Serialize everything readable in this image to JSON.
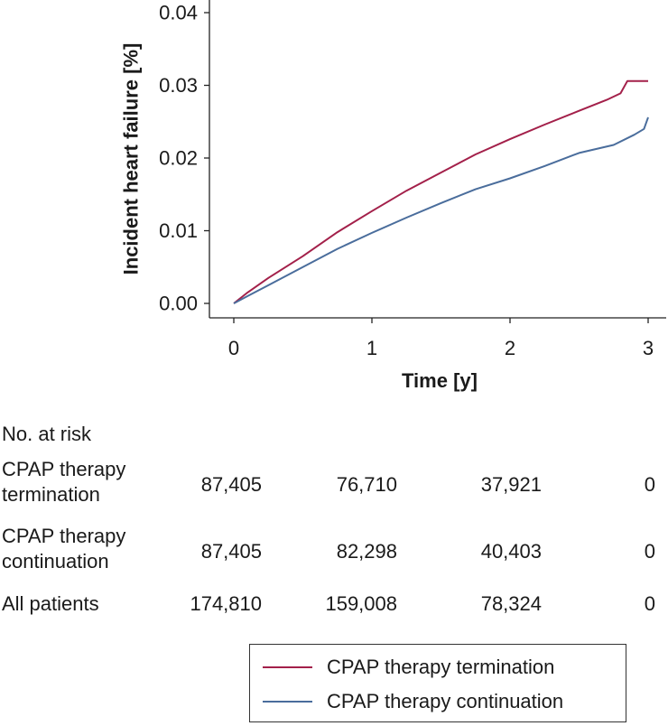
{
  "chart_data": {
    "type": "line",
    "title": "",
    "xlabel": "Time [y]",
    "ylabel": "Incident heart failure [%]",
    "xlim": [
      0,
      3
    ],
    "ylim": [
      0,
      0.04
    ],
    "x_ticks": [
      "0",
      "1",
      "2",
      "3"
    ],
    "y_ticks": [
      "0.00",
      "0.01",
      "0.02",
      "0.03",
      "0.04"
    ],
    "series": [
      {
        "name": "CPAP therapy termination",
        "color": "#a3204a",
        "x": [
          0,
          0.1,
          0.25,
          0.5,
          0.75,
          1.0,
          1.25,
          1.5,
          1.75,
          2.0,
          2.25,
          2.5,
          2.7,
          2.8,
          2.85,
          3.0
        ],
        "y": [
          0,
          0.0015,
          0.0035,
          0.0065,
          0.0098,
          0.0127,
          0.0155,
          0.018,
          0.0205,
          0.0226,
          0.0246,
          0.0265,
          0.028,
          0.0289,
          0.0306,
          0.0306
        ]
      },
      {
        "name": "CPAP therapy continuation",
        "color": "#4a6d9c",
        "x": [
          0,
          0.1,
          0.25,
          0.5,
          0.75,
          1.0,
          1.25,
          1.5,
          1.75,
          2.0,
          2.25,
          2.5,
          2.75,
          2.9,
          2.97,
          3.0
        ],
        "y": [
          0,
          0.001,
          0.0025,
          0.005,
          0.0075,
          0.0097,
          0.0118,
          0.0138,
          0.0157,
          0.0172,
          0.0189,
          0.0207,
          0.0218,
          0.0232,
          0.024,
          0.0256
        ]
      }
    ]
  },
  "risk_table": {
    "title": "No. at risk",
    "rows": [
      {
        "label_line1": "CPAP therapy",
        "label_line2": "termination",
        "values": [
          "87,405",
          "76,710",
          "37,921",
          "0"
        ]
      },
      {
        "label_line1": "CPAP therapy",
        "label_line2": "continuation",
        "values": [
          "87,405",
          "82,298",
          "40,403",
          "0"
        ]
      },
      {
        "label_line1": "All patients",
        "label_line2": "",
        "values": [
          "174,810",
          "159,008",
          "78,324",
          "0"
        ]
      }
    ]
  },
  "legend": {
    "items": [
      {
        "label": "CPAP therapy termination",
        "color": "#a3204a"
      },
      {
        "label": "CPAP therapy continuation",
        "color": "#4a6d9c"
      }
    ]
  }
}
